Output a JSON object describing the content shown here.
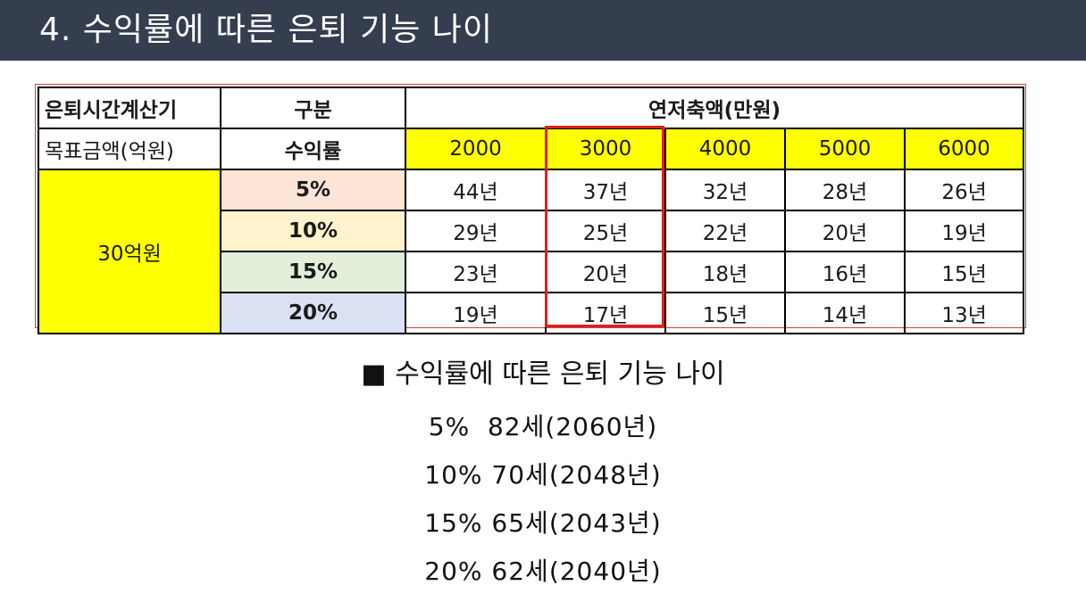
{
  "header": {
    "title": "4. 수익률에 따른 은퇴 기능 나이"
  },
  "table": {
    "calc_label": "은퇴시간계산기",
    "category_label": "구분",
    "savings_header": "연저축액(만원)",
    "target_label": "목표금액(억원)",
    "rate_label": "수익률",
    "target_value": "30억원",
    "amounts": [
      "2000",
      "3000",
      "4000",
      "5000",
      "6000"
    ],
    "rows": [
      {
        "rate": "5%",
        "cells": [
          "44년",
          "37년",
          "32년",
          "28년",
          "26년"
        ]
      },
      {
        "rate": "10%",
        "cells": [
          "29년",
          "25년",
          "22년",
          "20년",
          "19년"
        ]
      },
      {
        "rate": "15%",
        "cells": [
          "23년",
          "20년",
          "18년",
          "16년",
          "15년"
        ]
      },
      {
        "rate": "20%",
        "cells": [
          "19년",
          "17년",
          "15년",
          "14년",
          "13년"
        ]
      }
    ],
    "highlight_color": "#e01e1e",
    "header_fill": "#ffff00"
  },
  "summary": {
    "heading": "■ 수익률에 따른 은퇴 기능 나이",
    "lines": [
      "5%  82세(2060년)",
      "10% 70세(2048년)",
      "15% 65세(2043년)",
      "20% 62세(2040년)"
    ]
  }
}
